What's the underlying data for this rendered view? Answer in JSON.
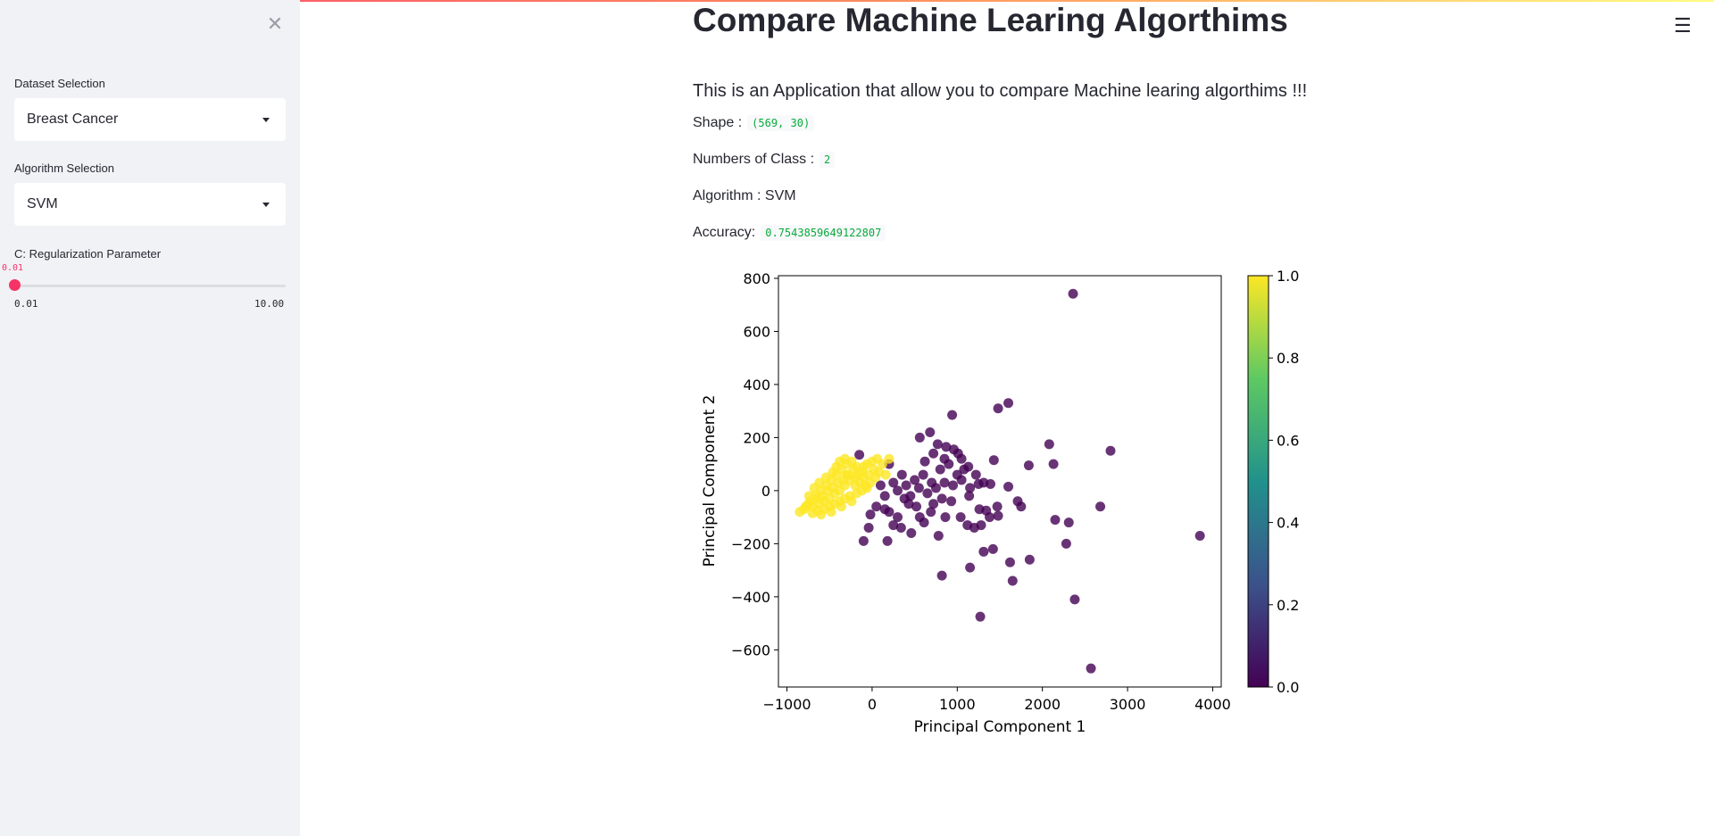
{
  "sidebar": {
    "dataset_label": "Dataset Selection",
    "dataset_value": "Breast Cancer",
    "algorithm_label": "Algorithm Selection",
    "algorithm_value": "SVM",
    "slider_label": "C: Regularization Parameter",
    "slider_value": "0.01",
    "slider_min": "0.01",
    "slider_max": "10.00",
    "slider_fraction": 0.0,
    "close_icon": "close-icon"
  },
  "main": {
    "title": "Compare Machine Learing Algorthims",
    "intro": "This is an Application that allow you to compare Machine learing algorthims !!!",
    "shape_label": "Shape :",
    "shape_value": "(569, 30)",
    "classes_label": "Numbers of Class :",
    "classes_value": "2",
    "algorithm_text": "Algorithm : SVM",
    "accuracy_label": "Accuracy:",
    "accuracy_value": "0.7543859649122807",
    "menu_icon": "hamburger-menu-icon"
  },
  "colors": {
    "accent": "#f63366",
    "class0": "#440154",
    "class1": "#fde725"
  },
  "chart_data": {
    "type": "scatter",
    "xlabel": "Principal Component 1",
    "ylabel": "Principal Component 2",
    "xlim": [
      -1100,
      4100
    ],
    "ylim": [
      -740,
      810
    ],
    "xticks": [
      -1000,
      0,
      1000,
      2000,
      3000,
      4000
    ],
    "yticks": [
      -600,
      -400,
      -200,
      0,
      200,
      400,
      600,
      800
    ],
    "colorbar": {
      "ticks": [
        "0.0",
        "0.2",
        "0.4",
        "0.6",
        "0.8",
        "1.0"
      ],
      "colormap": "viridis"
    },
    "series": [
      {
        "class": 0,
        "points": [
          [
            2360,
            742
          ],
          [
            1600,
            330
          ],
          [
            1480,
            310
          ],
          [
            940,
            285
          ],
          [
            2800,
            150
          ],
          [
            2080,
            175
          ],
          [
            2130,
            100
          ],
          [
            1840,
            95
          ],
          [
            1430,
            115
          ],
          [
            1010,
            140
          ],
          [
            680,
            220
          ],
          [
            560,
            200
          ],
          [
            770,
            175
          ],
          [
            870,
            165
          ],
          [
            960,
            155
          ],
          [
            1050,
            120
          ],
          [
            1130,
            90
          ],
          [
            1220,
            60
          ],
          [
            1310,
            30
          ],
          [
            1390,
            25
          ],
          [
            1600,
            15
          ],
          [
            1710,
            -40
          ],
          [
            1750,
            -60
          ],
          [
            1140,
            -20
          ],
          [
            1260,
            -70
          ],
          [
            1340,
            -75
          ],
          [
            1470,
            -60
          ],
          [
            1480,
            -95
          ],
          [
            1380,
            -100
          ],
          [
            1200,
            -140
          ],
          [
            1040,
            -100
          ],
          [
            930,
            -40
          ],
          [
            820,
            -30
          ],
          [
            690,
            -80
          ],
          [
            560,
            -100
          ],
          [
            430,
            -50
          ],
          [
            300,
            -100
          ],
          [
            250,
            -130
          ],
          [
            340,
            -140
          ],
          [
            180,
            -190
          ],
          [
            -100,
            -190
          ],
          [
            -40,
            -140
          ],
          [
            -20,
            -90
          ],
          [
            200,
            -80
          ],
          [
            460,
            -160
          ],
          [
            780,
            -170
          ],
          [
            1120,
            -130
          ],
          [
            1280,
            -130
          ],
          [
            2150,
            -110
          ],
          [
            2310,
            -120
          ],
          [
            2680,
            -60
          ],
          [
            3850,
            -170
          ],
          [
            2280,
            -200
          ],
          [
            1310,
            -230
          ],
          [
            1420,
            -220
          ],
          [
            1620,
            -270
          ],
          [
            1850,
            -260
          ],
          [
            1150,
            -290
          ],
          [
            820,
            -320
          ],
          [
            1650,
            -340
          ],
          [
            2380,
            -410
          ],
          [
            1270,
            -475
          ],
          [
            2570,
            -670
          ],
          [
            300,
            0
          ],
          [
            400,
            20
          ],
          [
            500,
            40
          ],
          [
            600,
            60
          ],
          [
            700,
            30
          ],
          [
            800,
            80
          ],
          [
            900,
            100
          ],
          [
            1000,
            60
          ],
          [
            450,
            -20
          ],
          [
            550,
            10
          ],
          [
            650,
            -10
          ],
          [
            750,
            10
          ],
          [
            850,
            30
          ],
          [
            950,
            20
          ],
          [
            1050,
            40
          ],
          [
            1150,
            10
          ],
          [
            350,
            60
          ],
          [
            250,
            30
          ],
          [
            150,
            -20
          ],
          [
            100,
            20
          ],
          [
            50,
            -60
          ],
          [
            200,
            100
          ],
          [
            -150,
            135
          ],
          [
            620,
            110
          ],
          [
            720,
            140
          ],
          [
            850,
            120
          ],
          [
            1080,
            80
          ],
          [
            1250,
            25
          ],
          [
            520,
            -60
          ],
          [
            610,
            -120
          ],
          [
            380,
            -30
          ],
          [
            150,
            -70
          ],
          [
            720,
            -50
          ],
          [
            860,
            -100
          ]
        ]
      },
      {
        "class": 1,
        "points": [
          [
            -850,
            -80
          ],
          [
            -780,
            -60
          ],
          [
            -720,
            -40
          ],
          [
            -660,
            -20
          ],
          [
            -600,
            0
          ],
          [
            -540,
            20
          ],
          [
            -480,
            40
          ],
          [
            -420,
            60
          ],
          [
            -360,
            80
          ],
          [
            -300,
            100
          ],
          [
            -240,
            110
          ],
          [
            -180,
            90
          ],
          [
            -120,
            70
          ],
          [
            -60,
            100
          ],
          [
            0,
            110
          ],
          [
            60,
            120
          ],
          [
            120,
            100
          ],
          [
            -800,
            -70
          ],
          [
            -750,
            -50
          ],
          [
            -700,
            -60
          ],
          [
            -650,
            -30
          ],
          [
            -620,
            -50
          ],
          [
            -580,
            -20
          ],
          [
            -560,
            -40
          ],
          [
            -520,
            0
          ],
          [
            -500,
            -30
          ],
          [
            -460,
            10
          ],
          [
            -440,
            -10
          ],
          [
            -400,
            30
          ],
          [
            -380,
            0
          ],
          [
            -340,
            40
          ],
          [
            -320,
            20
          ],
          [
            -280,
            60
          ],
          [
            -260,
            40
          ],
          [
            -220,
            80
          ],
          [
            -200,
            50
          ],
          [
            -160,
            60
          ],
          [
            -140,
            30
          ],
          [
            -100,
            50
          ],
          [
            -80,
            20
          ],
          [
            -40,
            60
          ],
          [
            -20,
            30
          ],
          [
            20,
            80
          ],
          [
            40,
            50
          ],
          [
            80,
            70
          ],
          [
            -700,
            -85
          ],
          [
            -640,
            -75
          ],
          [
            -560,
            -70
          ],
          [
            -500,
            -60
          ],
          [
            -440,
            -50
          ],
          [
            -380,
            -40
          ],
          [
            -320,
            -30
          ],
          [
            -260,
            -20
          ],
          [
            -600,
            -90
          ],
          [
            -480,
            -80
          ],
          [
            -360,
            -60
          ],
          [
            -240,
            -40
          ],
          [
            -180,
            -10
          ],
          [
            -120,
            0
          ],
          [
            -60,
            10
          ],
          [
            -420,
            90
          ],
          [
            -300,
            60
          ],
          [
            -200,
            20
          ],
          [
            -100,
            90
          ],
          [
            160,
            60
          ],
          [
            200,
            120
          ],
          [
            -740,
            -20
          ],
          [
            -680,
            10
          ],
          [
            -620,
            30
          ],
          [
            -540,
            50
          ],
          [
            -460,
            70
          ],
          [
            -380,
            110
          ],
          [
            -320,
            120
          ]
        ]
      }
    ]
  }
}
